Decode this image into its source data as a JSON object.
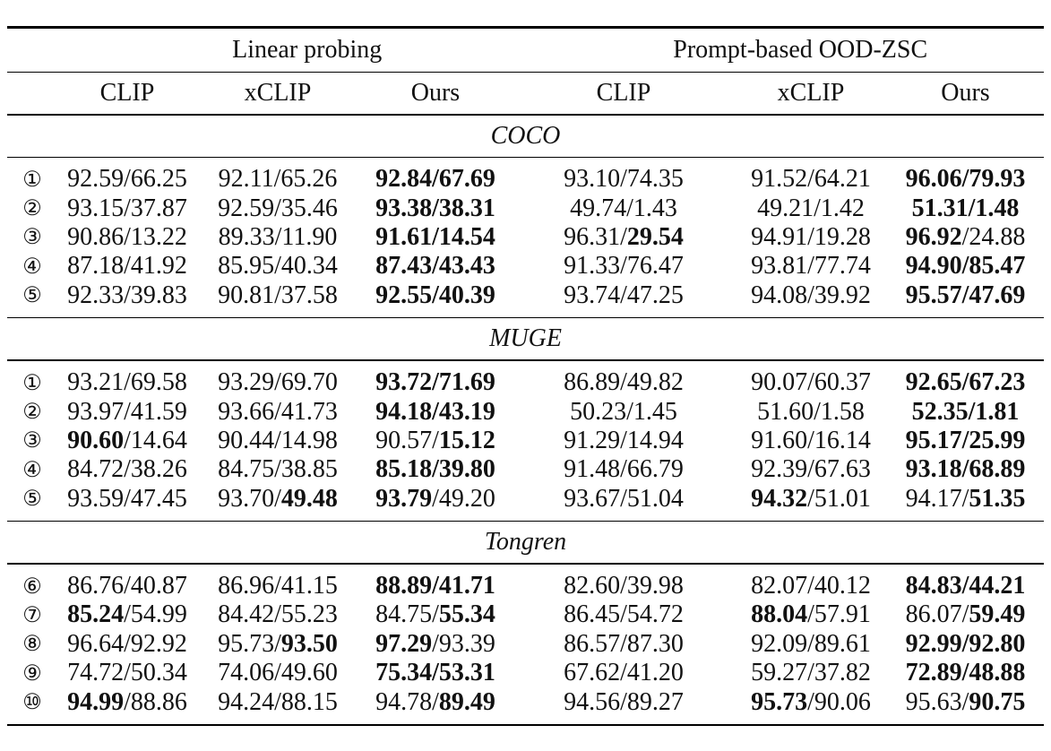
{
  "header": {
    "group_linear": "Linear probing",
    "group_prompt": "Prompt-based OOD-ZSC",
    "columns": [
      "CLIP",
      "xCLIP",
      "Ours",
      "CLIP",
      "xCLIP",
      "Ours"
    ]
  },
  "sections": [
    {
      "title": "COCO",
      "rows": [
        {
          "id": "①",
          "cells": [
            [
              "92.59/66.25"
            ],
            [
              "92.11/65.26"
            ],
            [
              "92.84/67.69",
              true
            ],
            [
              "93.10/74.35"
            ],
            [
              "91.52/64.21"
            ],
            [
              "96.06/79.93",
              true
            ]
          ]
        },
        {
          "id": "②",
          "cells": [
            [
              "93.15/37.87"
            ],
            [
              "92.59/35.46"
            ],
            [
              "93.38/38.31",
              true
            ],
            [
              "49.74/1.43"
            ],
            [
              "49.21/1.42"
            ],
            [
              "51.31/1.48",
              true
            ]
          ]
        },
        {
          "id": "③",
          "cells": [
            [
              "90.86/13.22"
            ],
            [
              "89.33/11.90"
            ],
            [
              "91.61/14.54",
              true
            ],
            [
              "96.31/",
              false,
              "29.54"
            ],
            [
              "94.91/19.28"
            ],
            [
              "96.92",
              true,
              "/24.88"
            ]
          ]
        },
        {
          "id": "④",
          "cells": [
            [
              "87.18/41.92"
            ],
            [
              "85.95/40.34"
            ],
            [
              "87.43/43.43",
              true
            ],
            [
              "91.33/76.47"
            ],
            [
              "93.81/77.74"
            ],
            [
              "94.90/85.47",
              true
            ]
          ]
        },
        {
          "id": "⑤",
          "cells": [
            [
              "92.33/39.83"
            ],
            [
              "90.81/37.58"
            ],
            [
              "92.55/40.39",
              true
            ],
            [
              "93.74/47.25"
            ],
            [
              "94.08/39.92"
            ],
            [
              "95.57/47.69",
              true
            ]
          ]
        }
      ]
    },
    {
      "title": "MUGE",
      "rows": [
        {
          "id": "①",
          "cells": [
            [
              "93.21/69.58"
            ],
            [
              "93.29/69.70"
            ],
            [
              "93.72/71.69",
              true
            ],
            [
              "86.89/49.82"
            ],
            [
              "90.07/60.37"
            ],
            [
              "92.65/67.23",
              true
            ]
          ]
        },
        {
          "id": "②",
          "cells": [
            [
              "93.97/41.59"
            ],
            [
              "93.66/41.73"
            ],
            [
              "94.18/43.19",
              true
            ],
            [
              "50.23/1.45"
            ],
            [
              "51.60/1.58"
            ],
            [
              "52.35/1.81",
              true
            ]
          ]
        },
        {
          "id": "③",
          "cells": [
            [
              "90.60",
              true,
              "/14.64"
            ],
            [
              "90.44/14.98"
            ],
            [
              "90.57/",
              false,
              "15.12"
            ],
            [
              "91.29/14.94"
            ],
            [
              "91.60/16.14"
            ],
            [
              "95.17/25.99",
              true
            ]
          ]
        },
        {
          "id": "④",
          "cells": [
            [
              "84.72/38.26"
            ],
            [
              "84.75/38.85"
            ],
            [
              "85.18/39.80",
              true
            ],
            [
              "91.48/66.79"
            ],
            [
              "92.39/67.63"
            ],
            [
              "93.18/68.89",
              true
            ]
          ]
        },
        {
          "id": "⑤",
          "cells": [
            [
              "93.59/47.45"
            ],
            [
              "93.70/",
              false,
              "49.48"
            ],
            [
              "93.79",
              true,
              "/49.20"
            ],
            [
              "93.67/51.04"
            ],
            [
              "94.32",
              true,
              "/51.01"
            ],
            [
              "94.17/",
              false,
              "51.35"
            ]
          ]
        }
      ]
    },
    {
      "title": "Tongren",
      "rows": [
        {
          "id": "⑥",
          "cells": [
            [
              "86.76/40.87"
            ],
            [
              "86.96/41.15"
            ],
            [
              "88.89/41.71",
              true
            ],
            [
              "82.60/39.98"
            ],
            [
              "82.07/40.12"
            ],
            [
              "84.83/44.21",
              true
            ]
          ]
        },
        {
          "id": "⑦",
          "cells": [
            [
              "85.24",
              true,
              "/54.99"
            ],
            [
              "84.42/55.23"
            ],
            [
              "84.75/",
              false,
              "55.34"
            ],
            [
              "86.45/54.72"
            ],
            [
              "88.04",
              true,
              "/57.91"
            ],
            [
              "86.07/",
              false,
              "59.49"
            ]
          ]
        },
        {
          "id": "⑧",
          "cells": [
            [
              "96.64/92.92"
            ],
            [
              "95.73/",
              false,
              "93.50"
            ],
            [
              "97.29",
              true,
              "/93.39"
            ],
            [
              "86.57/87.30"
            ],
            [
              "92.09/89.61"
            ],
            [
              "92.99/92.80",
              true
            ]
          ]
        },
        {
          "id": "⑨",
          "cells": [
            [
              "74.72/50.34"
            ],
            [
              "74.06/49.60"
            ],
            [
              "75.34/53.31",
              true
            ],
            [
              "67.62/41.20"
            ],
            [
              "59.27/37.82"
            ],
            [
              "72.89/48.88",
              true
            ]
          ]
        },
        {
          "id": "⑩",
          "cells": [
            [
              "94.99",
              true,
              "/88.86"
            ],
            [
              "94.24/88.15"
            ],
            [
              "94.78/",
              false,
              "89.49"
            ],
            [
              "94.56/89.27"
            ],
            [
              "95.73",
              true,
              "/90.06"
            ],
            [
              "95.63/",
              false,
              "90.75"
            ]
          ]
        }
      ]
    }
  ]
}
